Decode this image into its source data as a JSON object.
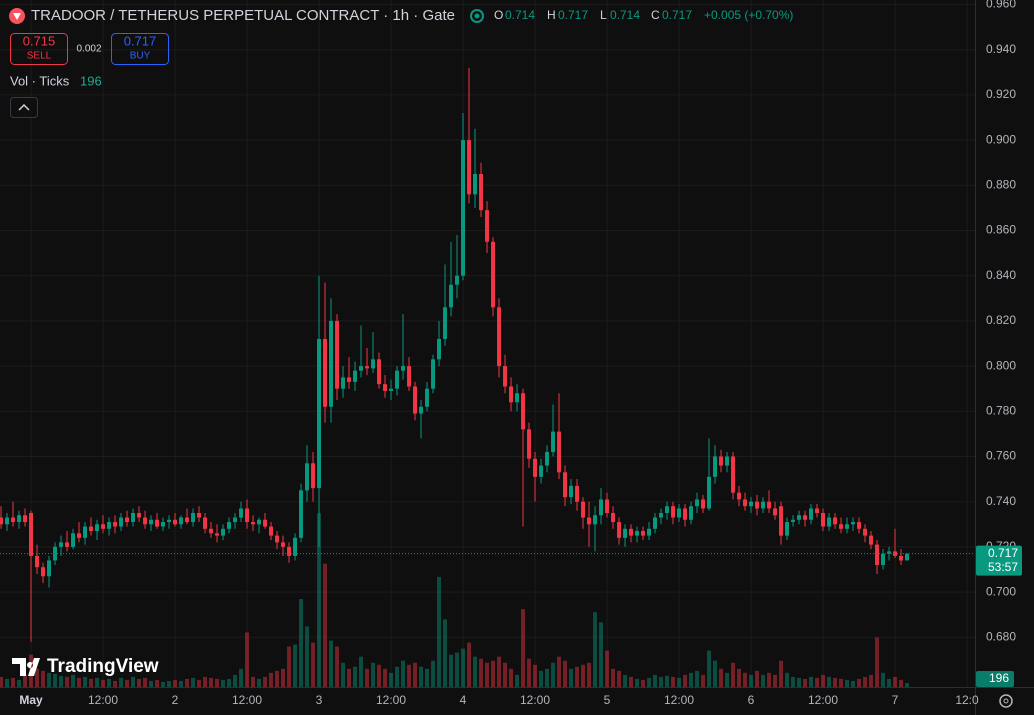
{
  "header": {
    "title": "TRADOOR / TETHERUS PERPETUAL CONTRACT · 1h · Gate",
    "ohlc_labels": [
      "O",
      "H",
      "L",
      "C"
    ],
    "change": "+0.005 (+0.70%)",
    "sell": 0.715,
    "sell_label": "SELL",
    "spread": 0.002,
    "buy": 0.717,
    "buy_label": "BUY",
    "volume_label": "Vol · Ticks",
    "countdown": "53:57",
    "brand": "TradingView"
  },
  "chart_data": {
    "type": "candlestick",
    "up_color": "#089981",
    "down_color": "#f23645",
    "grid": true,
    "ylim": [
      0.658,
      0.962
    ],
    "vol_ylim": [
      0,
      34000
    ],
    "xlim": [
      -0.17,
      162.33
    ],
    "yticks": [
      {
        "value": 0.68,
        "label": "0.680"
      },
      {
        "value": 0.7,
        "label": "0.700"
      },
      {
        "value": 0.72,
        "label": "0.720"
      },
      {
        "value": 0.74,
        "label": "0.740"
      },
      {
        "value": 0.76,
        "label": "0.760"
      },
      {
        "value": 0.78,
        "label": "0.780"
      },
      {
        "value": 0.8,
        "label": "0.800"
      },
      {
        "value": 0.82,
        "label": "0.820"
      },
      {
        "value": 0.84,
        "label": "0.840"
      },
      {
        "value": 0.86,
        "label": "0.860"
      },
      {
        "value": 0.88,
        "label": "0.880"
      },
      {
        "value": 0.9,
        "label": "0.900"
      },
      {
        "value": 0.92,
        "label": "0.920"
      },
      {
        "value": 0.94,
        "label": "0.940"
      },
      {
        "value": 0.96,
        "label": "0.960"
      }
    ],
    "xticks": [
      {
        "value": 5,
        "label": "May"
      },
      {
        "value": 17,
        "label": "12:00"
      },
      {
        "value": 29,
        "label": "2"
      },
      {
        "value": 41,
        "label": "12:00"
      },
      {
        "value": 53,
        "label": "3"
      },
      {
        "value": 65,
        "label": "12:00"
      },
      {
        "value": 77,
        "label": "4"
      },
      {
        "value": 89,
        "label": "12:00"
      },
      {
        "value": 101,
        "label": "5"
      },
      {
        "value": 113,
        "label": "12:00"
      },
      {
        "value": 125,
        "label": "6"
      },
      {
        "value": 137,
        "label": "12:00"
      },
      {
        "value": 149,
        "label": "7"
      },
      {
        "value": 161,
        "label": "12:0"
      }
    ],
    "candles": [
      [
        0.733,
        0.738,
        0.728,
        0.73,
        500
      ],
      [
        0.73,
        0.735,
        0.727,
        0.733,
        400
      ],
      [
        0.733,
        0.74,
        0.729,
        0.731,
        450
      ],
      [
        0.731,
        0.736,
        0.728,
        0.734,
        350
      ],
      [
        0.734,
        0.737,
        0.729,
        0.731,
        600
      ],
      [
        0.735,
        0.736,
        0.678,
        0.716,
        1600
      ],
      [
        0.716,
        0.721,
        0.708,
        0.711,
        900
      ],
      [
        0.711,
        0.713,
        0.704,
        0.707,
        800
      ],
      [
        0.707,
        0.716,
        0.702,
        0.714,
        700
      ],
      [
        0.714,
        0.722,
        0.712,
        0.72,
        650
      ],
      [
        0.72,
        0.725,
        0.716,
        0.722,
        550
      ],
      [
        0.722,
        0.727,
        0.718,
        0.72,
        500
      ],
      [
        0.72,
        0.728,
        0.719,
        0.726,
        600
      ],
      [
        0.726,
        0.731,
        0.722,
        0.724,
        450
      ],
      [
        0.724,
        0.731,
        0.721,
        0.729,
        500
      ],
      [
        0.729,
        0.733,
        0.725,
        0.727,
        400
      ],
      [
        0.727,
        0.732,
        0.723,
        0.73,
        450
      ],
      [
        0.73,
        0.734,
        0.726,
        0.728,
        350
      ],
      [
        0.728,
        0.733,
        0.725,
        0.731,
        400
      ],
      [
        0.731,
        0.734,
        0.726,
        0.729,
        300
      ],
      [
        0.729,
        0.735,
        0.727,
        0.733,
        450
      ],
      [
        0.733,
        0.736,
        0.729,
        0.731,
        350
      ],
      [
        0.731,
        0.737,
        0.729,
        0.735,
        500
      ],
      [
        0.735,
        0.738,
        0.731,
        0.733,
        400
      ],
      [
        0.733,
        0.736,
        0.728,
        0.73,
        450
      ],
      [
        0.73,
        0.734,
        0.727,
        0.732,
        300
      ],
      [
        0.732,
        0.735,
        0.728,
        0.729,
        350
      ],
      [
        0.729,
        0.733,
        0.727,
        0.731,
        250
      ],
      [
        0.731,
        0.734,
        0.728,
        0.732,
        300
      ],
      [
        0.732,
        0.735,
        0.729,
        0.73,
        350
      ],
      [
        0.73,
        0.734,
        0.728,
        0.733,
        300
      ],
      [
        0.733,
        0.737,
        0.73,
        0.731,
        400
      ],
      [
        0.731,
        0.737,
        0.729,
        0.735,
        450
      ],
      [
        0.735,
        0.738,
        0.731,
        0.733,
        350
      ],
      [
        0.733,
        0.735,
        0.726,
        0.728,
        500
      ],
      [
        0.728,
        0.731,
        0.724,
        0.726,
        450
      ],
      [
        0.726,
        0.73,
        0.722,
        0.725,
        400
      ],
      [
        0.725,
        0.73,
        0.723,
        0.728,
        350
      ],
      [
        0.728,
        0.733,
        0.726,
        0.731,
        400
      ],
      [
        0.731,
        0.735,
        0.728,
        0.733,
        600
      ],
      [
        0.733,
        0.74,
        0.731,
        0.737,
        900
      ],
      [
        0.737,
        0.741,
        0.728,
        0.731,
        2700
      ],
      [
        0.731,
        0.734,
        0.727,
        0.73,
        500
      ],
      [
        0.73,
        0.733,
        0.726,
        0.732,
        400
      ],
      [
        0.732,
        0.735,
        0.728,
        0.729,
        500
      ],
      [
        0.729,
        0.731,
        0.723,
        0.725,
        700
      ],
      [
        0.725,
        0.727,
        0.719,
        0.722,
        800
      ],
      [
        0.722,
        0.725,
        0.716,
        0.72,
        900
      ],
      [
        0.72,
        0.722,
        0.713,
        0.716,
        2000
      ],
      [
        0.716,
        0.726,
        0.714,
        0.724,
        2100
      ],
      [
        0.724,
        0.748,
        0.722,
        0.745,
        4350
      ],
      [
        0.745,
        0.765,
        0.74,
        0.757,
        3000
      ],
      [
        0.757,
        0.762,
        0.74,
        0.746,
        2200
      ],
      [
        0.746,
        0.84,
        0.72,
        0.812,
        8600
      ],
      [
        0.812,
        0.837,
        0.775,
        0.782,
        6100
      ],
      [
        0.782,
        0.83,
        0.775,
        0.82,
        2300
      ],
      [
        0.82,
        0.823,
        0.785,
        0.79,
        2000
      ],
      [
        0.79,
        0.8,
        0.786,
        0.795,
        1200
      ],
      [
        0.795,
        0.804,
        0.79,
        0.793,
        900
      ],
      [
        0.793,
        0.802,
        0.789,
        0.798,
        1000
      ],
      [
        0.798,
        0.818,
        0.795,
        0.8,
        1500
      ],
      [
        0.8,
        0.808,
        0.796,
        0.799,
        900
      ],
      [
        0.799,
        0.815,
        0.797,
        0.803,
        1200
      ],
      [
        0.803,
        0.806,
        0.79,
        0.792,
        1100
      ],
      [
        0.792,
        0.796,
        0.786,
        0.789,
        900
      ],
      [
        0.789,
        0.794,
        0.785,
        0.79,
        700
      ],
      [
        0.79,
        0.8,
        0.787,
        0.798,
        1000
      ],
      [
        0.798,
        0.823,
        0.794,
        0.8,
        1300
      ],
      [
        0.8,
        0.804,
        0.789,
        0.791,
        1100
      ],
      [
        0.791,
        0.793,
        0.776,
        0.779,
        1200
      ],
      [
        0.779,
        0.785,
        0.768,
        0.782,
        1000
      ],
      [
        0.782,
        0.793,
        0.78,
        0.79,
        900
      ],
      [
        0.79,
        0.805,
        0.788,
        0.803,
        1300
      ],
      [
        0.803,
        0.82,
        0.8,
        0.812,
        5450
      ],
      [
        0.812,
        0.845,
        0.809,
        0.826,
        3350
      ],
      [
        0.826,
        0.855,
        0.822,
        0.836,
        1600
      ],
      [
        0.836,
        0.858,
        0.83,
        0.84,
        1700
      ],
      [
        0.84,
        0.912,
        0.838,
        0.9,
        1900
      ],
      [
        0.9,
        0.932,
        0.872,
        0.876,
        2200
      ],
      [
        0.876,
        0.905,
        0.87,
        0.885,
        1500
      ],
      [
        0.885,
        0.89,
        0.866,
        0.869,
        1400
      ],
      [
        0.869,
        0.873,
        0.85,
        0.855,
        1200
      ],
      [
        0.855,
        0.857,
        0.822,
        0.826,
        1300
      ],
      [
        0.826,
        0.83,
        0.795,
        0.8,
        1500
      ],
      [
        0.8,
        0.805,
        0.788,
        0.791,
        1200
      ],
      [
        0.791,
        0.795,
        0.78,
        0.784,
        900
      ],
      [
        0.784,
        0.792,
        0.78,
        0.788,
        600
      ],
      [
        0.788,
        0.79,
        0.729,
        0.772,
        3850
      ],
      [
        0.772,
        0.775,
        0.755,
        0.759,
        1400
      ],
      [
        0.759,
        0.762,
        0.74,
        0.751,
        1100
      ],
      [
        0.751,
        0.759,
        0.748,
        0.756,
        800
      ],
      [
        0.756,
        0.765,
        0.753,
        0.762,
        900
      ],
      [
        0.762,
        0.783,
        0.76,
        0.771,
        1200
      ],
      [
        0.771,
        0.788,
        0.75,
        0.753,
        1500
      ],
      [
        0.753,
        0.756,
        0.738,
        0.742,
        1300
      ],
      [
        0.742,
        0.75,
        0.739,
        0.747,
        900
      ],
      [
        0.747,
        0.75,
        0.736,
        0.74,
        1000
      ],
      [
        0.74,
        0.742,
        0.728,
        0.733,
        1100
      ],
      [
        0.733,
        0.74,
        0.72,
        0.73,
        1200
      ],
      [
        0.73,
        0.738,
        0.718,
        0.734,
        3700
      ],
      [
        0.734,
        0.746,
        0.73,
        0.741,
        3200
      ],
      [
        0.741,
        0.744,
        0.733,
        0.735,
        1800
      ],
      [
        0.735,
        0.738,
        0.728,
        0.731,
        900
      ],
      [
        0.731,
        0.733,
        0.721,
        0.724,
        800
      ],
      [
        0.724,
        0.73,
        0.72,
        0.728,
        600
      ],
      [
        0.728,
        0.73,
        0.722,
        0.725,
        500
      ],
      [
        0.725,
        0.729,
        0.722,
        0.727,
        400
      ],
      [
        0.727,
        0.729,
        0.723,
        0.725,
        350
      ],
      [
        0.725,
        0.731,
        0.723,
        0.728,
        450
      ],
      [
        0.728,
        0.735,
        0.726,
        0.733,
        600
      ],
      [
        0.733,
        0.737,
        0.73,
        0.735,
        500
      ],
      [
        0.735,
        0.74,
        0.732,
        0.738,
        550
      ],
      [
        0.738,
        0.74,
        0.73,
        0.733,
        500
      ],
      [
        0.733,
        0.739,
        0.731,
        0.737,
        450
      ],
      [
        0.737,
        0.739,
        0.729,
        0.732,
        600
      ],
      [
        0.732,
        0.74,
        0.73,
        0.738,
        700
      ],
      [
        0.738,
        0.744,
        0.735,
        0.741,
        800
      ],
      [
        0.741,
        0.743,
        0.735,
        0.737,
        600
      ],
      [
        0.737,
        0.768,
        0.736,
        0.751,
        1800
      ],
      [
        0.751,
        0.765,
        0.748,
        0.76,
        1300
      ],
      [
        0.76,
        0.763,
        0.753,
        0.756,
        900
      ],
      [
        0.756,
        0.762,
        0.753,
        0.76,
        700
      ],
      [
        0.76,
        0.762,
        0.741,
        0.744,
        1200
      ],
      [
        0.744,
        0.747,
        0.738,
        0.741,
        900
      ],
      [
        0.741,
        0.744,
        0.736,
        0.738,
        700
      ],
      [
        0.738,
        0.742,
        0.735,
        0.74,
        600
      ],
      [
        0.74,
        0.743,
        0.734,
        0.737,
        800
      ],
      [
        0.737,
        0.742,
        0.735,
        0.74,
        600
      ],
      [
        0.74,
        0.745,
        0.735,
        0.737,
        700
      ],
      [
        0.737,
        0.74,
        0.732,
        0.734,
        600
      ],
      [
        0.738,
        0.74,
        0.721,
        0.725,
        1300
      ],
      [
        0.725,
        0.733,
        0.723,
        0.731,
        700
      ],
      [
        0.731,
        0.734,
        0.729,
        0.732,
        500
      ],
      [
        0.732,
        0.736,
        0.73,
        0.734,
        450
      ],
      [
        0.734,
        0.736,
        0.729,
        0.732,
        400
      ],
      [
        0.732,
        0.739,
        0.73,
        0.737,
        500
      ],
      [
        0.737,
        0.739,
        0.733,
        0.735,
        450
      ],
      [
        0.735,
        0.737,
        0.727,
        0.729,
        600
      ],
      [
        0.729,
        0.735,
        0.727,
        0.733,
        500
      ],
      [
        0.733,
        0.735,
        0.728,
        0.73,
        450
      ],
      [
        0.73,
        0.733,
        0.726,
        0.728,
        400
      ],
      [
        0.728,
        0.733,
        0.726,
        0.73,
        350
      ],
      [
        0.73,
        0.733,
        0.727,
        0.731,
        300
      ],
      [
        0.731,
        0.733,
        0.726,
        0.728,
        400
      ],
      [
        0.728,
        0.73,
        0.722,
        0.725,
        500
      ],
      [
        0.725,
        0.727,
        0.719,
        0.721,
        600
      ],
      [
        0.721,
        0.723,
        0.708,
        0.712,
        2450
      ],
      [
        0.712,
        0.719,
        0.71,
        0.717,
        700
      ],
      [
        0.717,
        0.72,
        0.714,
        0.718,
        400
      ],
      [
        0.718,
        0.728,
        0.715,
        0.716,
        500
      ],
      [
        0.716,
        0.719,
        0.712,
        0.714,
        350
      ],
      [
        0.714,
        0.717,
        0.714,
        0.717,
        196
      ]
    ]
  }
}
